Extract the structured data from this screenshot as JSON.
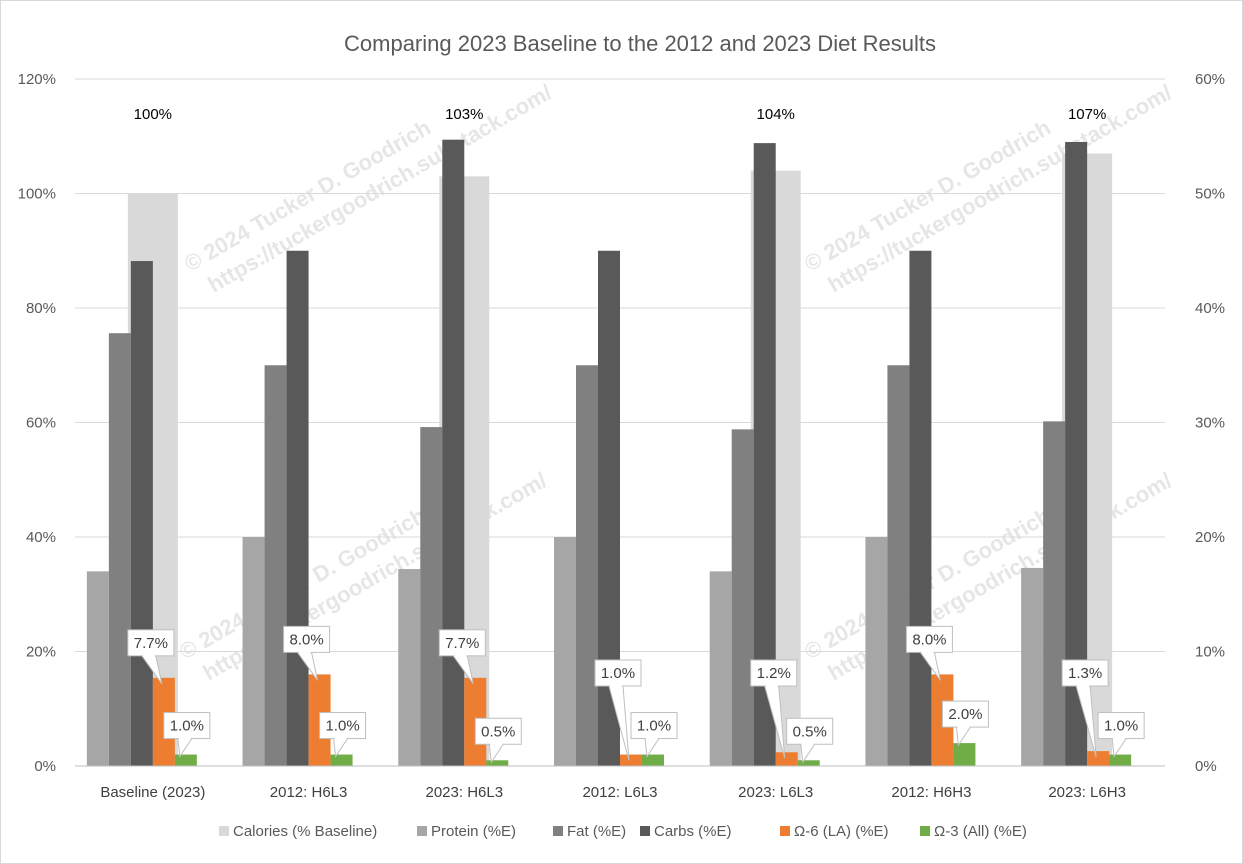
{
  "chart_data": {
    "type": "bar",
    "title": "Comparing 2023 Baseline to the 2012 and 2023 Diet Results",
    "categories": [
      "Baseline (2023)",
      "2012: H6L3",
      "2023: H6L3",
      "2012: L6L3",
      "2023: L6L3",
      "2012: H6H3",
      "2023: L6H3"
    ],
    "left_axis": {
      "ylim": [
        0,
        120
      ],
      "ticks": [
        "0%",
        "20%",
        "40%",
        "60%",
        "80%",
        "100%",
        "120%"
      ]
    },
    "right_axis": {
      "ylim": [
        0,
        60
      ],
      "ticks": [
        "0%",
        "10%",
        "20%",
        "30%",
        "40%",
        "50%",
        "60%"
      ]
    },
    "series": [
      {
        "name": "Calories (% Baseline)",
        "axis": "left",
        "color": "#d9d9d9",
        "values": [
          100,
          0,
          103,
          0,
          104,
          0,
          107
        ]
      },
      {
        "name": "Protein (%E)",
        "axis": "right",
        "color": "#a6a6a6",
        "values": [
          17,
          20,
          17.2,
          20,
          17,
          20,
          17.3
        ]
      },
      {
        "name": "Fat (%E)",
        "axis": "right",
        "color": "#808080",
        "values": [
          37.8,
          35,
          29.6,
          35,
          29.4,
          35,
          30.1
        ]
      },
      {
        "name": "Carbs (%E)",
        "axis": "right",
        "color": "#595959",
        "values": [
          44.1,
          45,
          54.7,
          45,
          54.4,
          45,
          54.5
        ]
      },
      {
        "name": "Ω-6 (LA) (%E)",
        "axis": "right",
        "color": "#ed7d31",
        "values": [
          7.7,
          8.0,
          7.7,
          1.0,
          1.2,
          8.0,
          1.3
        ]
      },
      {
        "name": "Ω-3 (All) (%E)",
        "axis": "right",
        "color": "#70ad47",
        "values": [
          1.0,
          1.0,
          0.5,
          1.0,
          0.5,
          2.0,
          1.0
        ]
      }
    ],
    "calorie_labels": [
      "100%",
      "",
      "103%",
      "",
      "104%",
      "",
      "107%"
    ],
    "omega6_labels": [
      "7.7%",
      "8.0%",
      "7.7%",
      "1.0%",
      "1.2%",
      "8.0%",
      "1.3%"
    ],
    "omega3_labels": [
      "1.0%",
      "1.0%",
      "0.5%",
      "1.0%",
      "0.5%",
      "2.0%",
      "1.0%"
    ],
    "legend_position": "bottom",
    "grid": true
  },
  "watermark": {
    "line1": "© 2024 Tucker D. Goodrich",
    "line2": "https://tuckergoodrich.substack.com/"
  }
}
